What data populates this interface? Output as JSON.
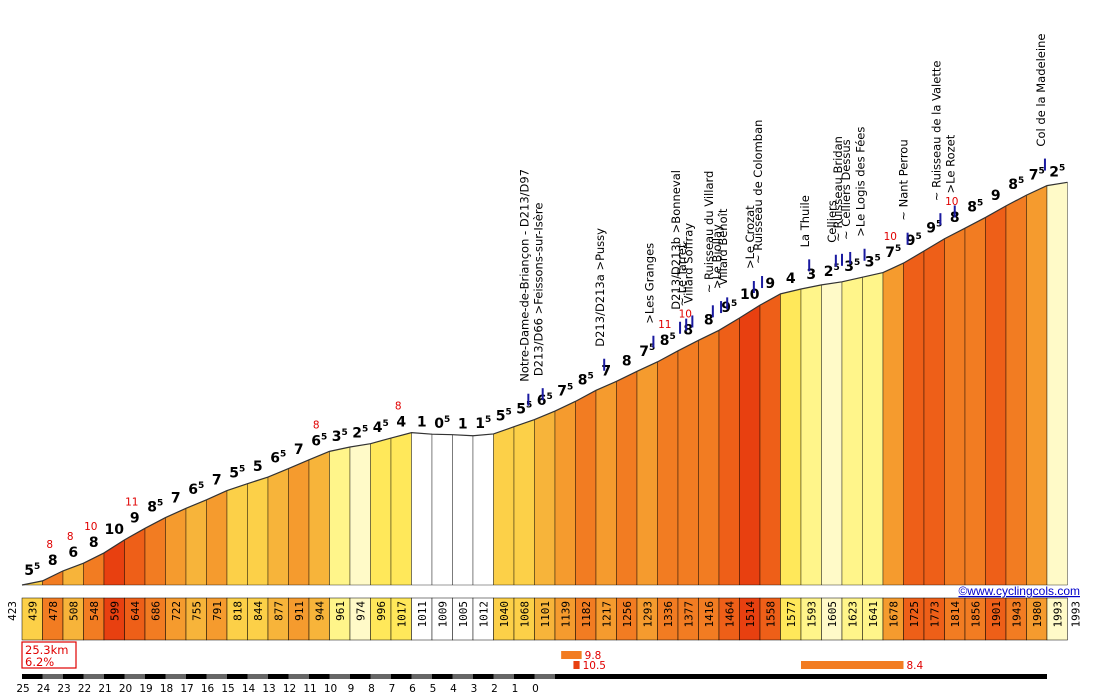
{
  "chart_data": {
    "type": "area",
    "title": "",
    "xlabel": "",
    "ylabel": "",
    "website": "©www.cyclingcols.com",
    "summary": {
      "length": "25.3km",
      "avg_grade": "6.2%"
    },
    "start_altitude": 423,
    "end_altitude": 1993,
    "km_labels": [
      "25",
      "24",
      "23",
      "22",
      "21",
      "20",
      "19",
      "18",
      "17",
      "16",
      "15",
      "14",
      "13",
      "12",
      "11",
      "10",
      "9",
      "8",
      "7",
      "6",
      "5",
      "4",
      "3",
      "2",
      "1",
      "0"
    ],
    "segments": [
      {
        "alt": 439,
        "g": "5",
        "gs": "5",
        "m": ""
      },
      {
        "alt": 478,
        "g": "8",
        "gs": "",
        "m": "8"
      },
      {
        "alt": 508,
        "g": "6",
        "gs": "",
        "m": "8"
      },
      {
        "alt": 548,
        "g": "8",
        "gs": "",
        "m": "10"
      },
      {
        "alt": 599,
        "g": "10",
        "gs": "",
        "m": ""
      },
      {
        "alt": 644,
        "g": "9",
        "gs": "",
        "m": "11"
      },
      {
        "alt": 686,
        "g": "8",
        "gs": "5",
        "m": ""
      },
      {
        "alt": 722,
        "g": "7",
        "gs": "",
        "m": ""
      },
      {
        "alt": 755,
        "g": "6",
        "gs": "5",
        "m": ""
      },
      {
        "alt": 791,
        "g": "7",
        "gs": "",
        "m": ""
      },
      {
        "alt": 818,
        "g": "5",
        "gs": "5",
        "m": ""
      },
      {
        "alt": 844,
        "g": "5",
        "gs": "",
        "m": ""
      },
      {
        "alt": 877,
        "g": "6",
        "gs": "5",
        "m": ""
      },
      {
        "alt": 911,
        "g": "7",
        "gs": "",
        "m": ""
      },
      {
        "alt": 944,
        "g": "6",
        "gs": "5",
        "m": "8"
      },
      {
        "alt": 961,
        "g": "3",
        "gs": "5",
        "m": ""
      },
      {
        "alt": 974,
        "g": "2",
        "gs": "5",
        "m": ""
      },
      {
        "alt": 996,
        "g": "4",
        "gs": "5",
        "m": ""
      },
      {
        "alt": 1017,
        "g": "4",
        "gs": "",
        "m": "8"
      },
      {
        "alt": 1011,
        "g": "1",
        "gs": "",
        "m": ""
      },
      {
        "alt": 1009,
        "g": "0",
        "gs": "5",
        "m": ""
      },
      {
        "alt": 1005,
        "g": "1",
        "gs": "",
        "m": ""
      },
      {
        "alt": 1012,
        "g": "1",
        "gs": "5",
        "m": ""
      },
      {
        "alt": 1040,
        "g": "5",
        "gs": "5",
        "m": ""
      },
      {
        "alt": 1068,
        "g": "5",
        "gs": "5",
        "m": ""
      },
      {
        "alt": 1101,
        "g": "6",
        "gs": "5",
        "m": ""
      },
      {
        "alt": 1139,
        "g": "7",
        "gs": "5",
        "m": ""
      },
      {
        "alt": 1182,
        "g": "8",
        "gs": "5",
        "m": ""
      },
      {
        "alt": 1217,
        "g": "7",
        "gs": "",
        "m": ""
      },
      {
        "alt": 1256,
        "g": "8",
        "gs": "",
        "m": ""
      },
      {
        "alt": 1293,
        "g": "7",
        "gs": "5",
        "m": ""
      },
      {
        "alt": 1336,
        "g": "8",
        "gs": "5",
        "m": "11"
      },
      {
        "alt": 1377,
        "g": "8",
        "gs": "",
        "m": "10"
      },
      {
        "alt": 1416,
        "g": "8",
        "gs": "",
        "m": ""
      },
      {
        "alt": 1464,
        "g": "9",
        "gs": "5",
        "m": ""
      },
      {
        "alt": 1514,
        "g": "10",
        "gs": "",
        "m": ""
      },
      {
        "alt": 1558,
        "g": "9",
        "gs": "",
        "m": ""
      },
      {
        "alt": 1577,
        "g": "4",
        "gs": "",
        "m": ""
      },
      {
        "alt": 1593,
        "g": "3",
        "gs": "",
        "m": ""
      },
      {
        "alt": 1605,
        "g": "2",
        "gs": "5",
        "m": ""
      },
      {
        "alt": 1623,
        "g": "3",
        "gs": "5",
        "m": ""
      },
      {
        "alt": 1641,
        "g": "3",
        "gs": "5",
        "m": ""
      },
      {
        "alt": 1678,
        "g": "7",
        "gs": "5",
        "m": "10"
      },
      {
        "alt": 1725,
        "g": "9",
        "gs": "5",
        "m": ""
      },
      {
        "alt": 1773,
        "g": "9",
        "gs": "5",
        "m": ""
      },
      {
        "alt": 1814,
        "g": "8",
        "gs": "",
        "m": "10"
      },
      {
        "alt": 1856,
        "g": "8",
        "gs": "5",
        "m": ""
      },
      {
        "alt": 1901,
        "g": "9",
        "gs": "",
        "m": ""
      },
      {
        "alt": 1943,
        "g": "8",
        "gs": "5",
        "m": ""
      },
      {
        "alt": 1980,
        "g": "7",
        "gs": "5",
        "m": ""
      },
      {
        "alt": 1993,
        "g": "2",
        "gs": "5",
        "m": ""
      }
    ],
    "locations": [
      {
        "km": 25.3,
        "label": "Notre-Dame-de-Briançon - D213/D97"
      },
      {
        "km": 24.6,
        "label": "D213/D66 >Feissons-sur-Isère"
      },
      {
        "km": 21.6,
        "label": "D213/D213a >Pussy"
      },
      {
        "km": 19.2,
        "label": ">Les Granges"
      },
      {
        "km": 17.9,
        "label": "D213/D213b >Bonneval"
      },
      {
        "km": 17.6,
        "label": "~ Le Tarret"
      },
      {
        "km": 17.3,
        "label": "Villard Soffray"
      },
      {
        "km": 16.3,
        "label": "~ Ruisseau du Villard"
      },
      {
        "km": 15.9,
        "label": ">Le Biollay"
      },
      {
        "km": 15.6,
        "label": "Villard Benoît"
      },
      {
        "km": 14.3,
        "label": ">Le Crozat"
      },
      {
        "km": 13.9,
        "label": "~ Ruisseau de Colomban"
      },
      {
        "km": 11.6,
        "label": "La Thuile"
      },
      {
        "km": 10.3,
        "label": "Celliers"
      },
      {
        "km": 10.0,
        "label": "~ Ruisseau Bridan"
      },
      {
        "km": 9.6,
        "label": "~ Celliers Dessus"
      },
      {
        "km": 8.9,
        "label": ">Le Logis des Fées"
      },
      {
        "km": 6.8,
        "label": "~ Nant Perrou"
      },
      {
        "km": 5.2,
        "label": "~ Ruisseau de la Valette"
      },
      {
        "km": 4.5,
        "label": ">Le Rozet"
      },
      {
        "km": 0.1,
        "label": "Col de la Madeleine"
      }
    ],
    "steep_sections": [
      {
        "label": "9.8",
        "from_km": 23.7,
        "to_km": 22.7
      },
      {
        "label": "10.5",
        "from_km": 23.1,
        "to_km": 22.8
      },
      {
        "label": "8.4",
        "from_km": 12.0,
        "to_km": 7.0
      }
    ]
  }
}
